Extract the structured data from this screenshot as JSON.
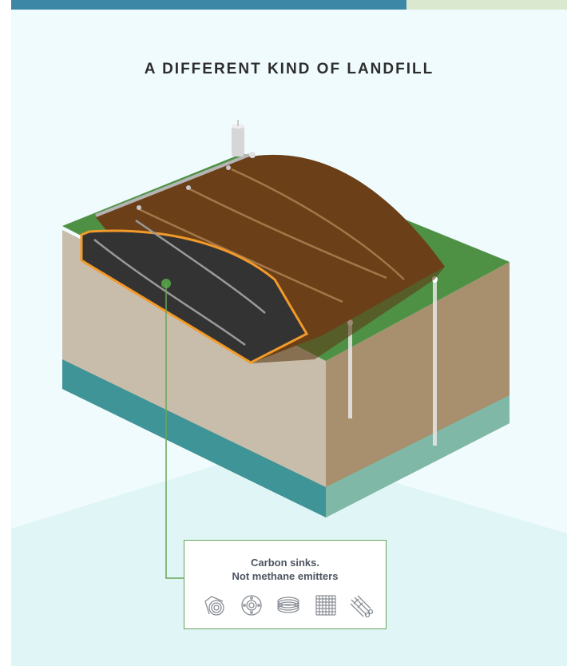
{
  "title": "A DIFFERENT KIND OF LANDFILL",
  "callout": {
    "line1": "Carbon sinks.",
    "line2": "Not methane emitters"
  },
  "legend_icons": [
    "coiled-pipe-icon",
    "flange-icon",
    "wire-coil-icon",
    "woven-fabric-icon",
    "bundled-tubes-icon"
  ],
  "colors": {
    "banner": "#3d87a6",
    "grass": "#4e9144",
    "soil_cap": "#6b4019",
    "carbon_cell": "#333333",
    "highlight": "#f29a2a",
    "groundwater": "#3f9497",
    "callout_border": "#6aa35a"
  }
}
